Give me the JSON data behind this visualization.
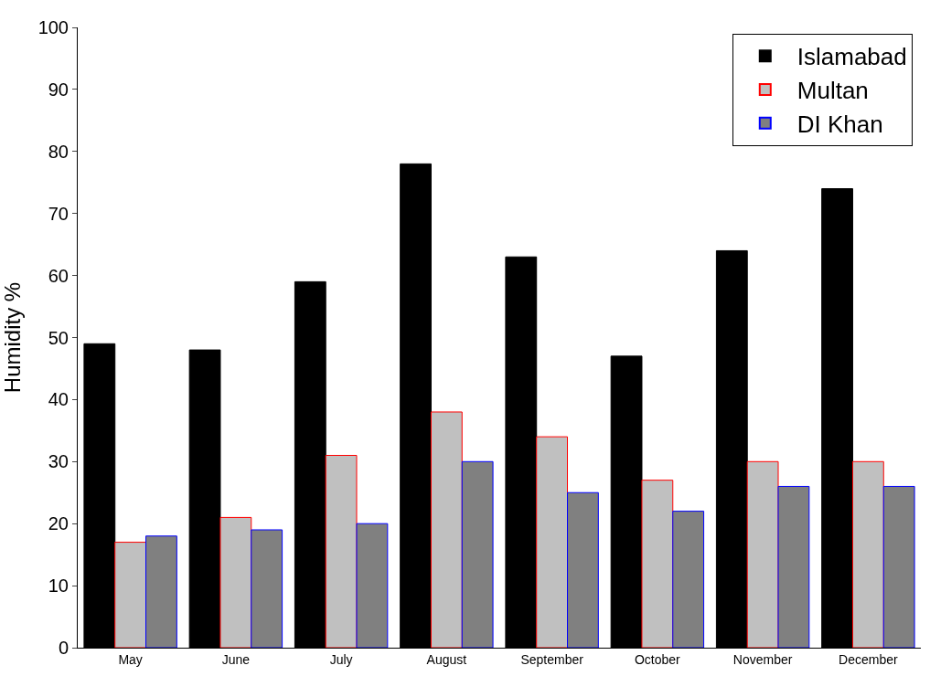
{
  "chart_data": {
    "type": "bar",
    "ylabel": "Humidity %",
    "categories": [
      "May",
      "June",
      "July",
      "August",
      "September",
      "October",
      "November",
      "December"
    ],
    "series": [
      {
        "name": "Islamabad",
        "color": "#000000",
        "values": [
          49,
          48,
          59,
          78,
          63,
          47,
          64,
          74
        ]
      },
      {
        "name": "Multan",
        "color": "#c0c0c0",
        "values": [
          17,
          21,
          31,
          38,
          34,
          27,
          30,
          30
        ]
      },
      {
        "name": "DI Khan",
        "color": "#808080",
        "values": [
          18,
          19,
          20,
          30,
          25,
          22,
          26,
          26
        ]
      }
    ],
    "ylim": [
      0,
      100
    ],
    "yticks": [
      0,
      10,
      20,
      30,
      40,
      50,
      60,
      70,
      80,
      90,
      100
    ],
    "legend": "top right"
  }
}
